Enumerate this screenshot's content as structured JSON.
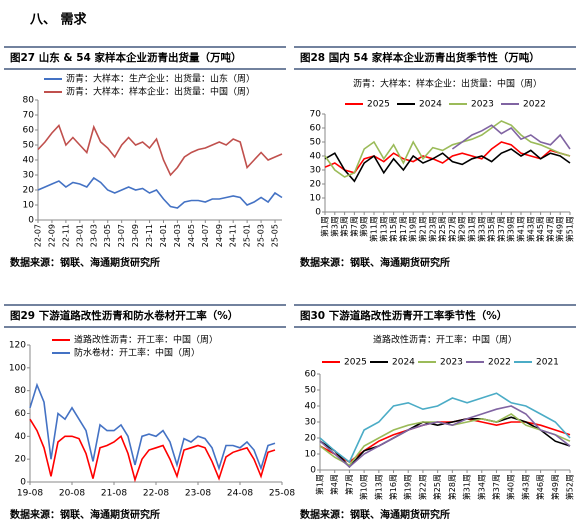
{
  "section_title": "八、 需求",
  "chart_data": [
    {
      "type": "line",
      "title": "图27 山东 & 54 家样本企业沥青出货量（万吨）",
      "source": "数据来源：钢联、海通期货研究所",
      "categories": [
        "22-07",
        null,
        "22-09",
        null,
        "22-11",
        null,
        "23-01",
        null,
        "23-03",
        null,
        "23-05",
        null,
        "23-07",
        null,
        "23-09",
        null,
        "23-11",
        null,
        "24-01",
        null,
        "24-03",
        null,
        "24-05",
        null,
        "24-07",
        null,
        "24-09",
        null,
        "24-11",
        null,
        "25-01",
        null,
        "25-03",
        null,
        "25-05",
        null
      ],
      "series": [
        {
          "name": "沥青：大样本：生产企业：出货量：山东（周）",
          "color": "#4472c4",
          "values": [
            20,
            22,
            24,
            26,
            22,
            25,
            24,
            22,
            28,
            25,
            20,
            18,
            20,
            22,
            20,
            21,
            18,
            20,
            14,
            9,
            8,
            12,
            13,
            13,
            12,
            14,
            14,
            15,
            16,
            15,
            10,
            12,
            15,
            12,
            18,
            15
          ]
        },
        {
          "name": "沥青：大样本：样本企业：出货量：中国（周）",
          "color": "#c0504d",
          "values": [
            47,
            52,
            58,
            63,
            50,
            55,
            50,
            45,
            62,
            52,
            48,
            42,
            50,
            55,
            50,
            52,
            48,
            54,
            40,
            30,
            35,
            42,
            45,
            47,
            48,
            50,
            52,
            50,
            54,
            52,
            35,
            40,
            45,
            40,
            42,
            44
          ]
        }
      ],
      "ylim": [
        0,
        80
      ],
      "yticks": [
        0,
        10,
        20,
        30,
        40,
        50,
        60,
        70,
        80
      ],
      "grid": false
    },
    {
      "type": "line",
      "title": "图28 国内 54 家样本企业沥青出货季节性（万吨）",
      "subtitle": "沥青：大样本：样本企业：出货量：中国（周）",
      "source": "数据来源：钢联、海通期货研究所",
      "categories": [
        "第1周",
        "第3周",
        "第5周",
        "第7周",
        "第9周",
        "第11周",
        "第13周",
        "第15周",
        "第17周",
        "第19周",
        "第21周",
        "第23周",
        "第25周",
        "第27周",
        "第29周",
        "第31周",
        "第33周",
        "第35周",
        "第37周",
        "第39周",
        "第41周",
        "第43周",
        "第45周",
        "第47周",
        "第49周",
        "第51周"
      ],
      "series": [
        {
          "name": "2025",
          "color": "#ff0000",
          "values": [
            32,
            35,
            30,
            28,
            38,
            40,
            36,
            42,
            38,
            36,
            40,
            38,
            35,
            40,
            42,
            40,
            38,
            45,
            50,
            48,
            42,
            40,
            38,
            44,
            42,
            40
          ]
        },
        {
          "name": "2024",
          "color": "#000000",
          "values": [
            38,
            42,
            30,
            22,
            35,
            40,
            28,
            38,
            30,
            40,
            35,
            38,
            42,
            36,
            34,
            38,
            40,
            36,
            42,
            45,
            40,
            44,
            38,
            42,
            40,
            35
          ]
        },
        {
          "name": "2023",
          "color": "#9bbb59",
          "values": [
            40,
            30,
            25,
            28,
            45,
            50,
            38,
            48,
            35,
            50,
            38,
            46,
            44,
            48,
            50,
            52,
            55,
            60,
            65,
            62,
            55,
            50,
            48,
            45,
            42,
            40
          ]
        },
        {
          "name": "2022",
          "color": "#8064a2",
          "values": [
            null,
            null,
            null,
            null,
            null,
            null,
            null,
            null,
            null,
            null,
            null,
            null,
            null,
            45,
            50,
            55,
            58,
            62,
            56,
            60,
            52,
            55,
            50,
            48,
            55,
            45
          ]
        }
      ],
      "ylim": [
        0,
        70
      ],
      "yticks": [
        0,
        10,
        20,
        30,
        40,
        50,
        60,
        70
      ],
      "grid": false
    },
    {
      "type": "line",
      "title": "图29 下游道路改性沥青和防水卷材开工率（%）",
      "source": "数据来源：钢联、海通期货研究所",
      "categories": [
        "19-08",
        null,
        null,
        null,
        null,
        null,
        "20-08",
        null,
        null,
        null,
        null,
        null,
        "21-08",
        null,
        null,
        null,
        null,
        null,
        "22-08",
        null,
        null,
        null,
        null,
        null,
        "23-08",
        null,
        null,
        null,
        null,
        null,
        "24-08",
        null,
        null,
        null,
        null,
        null,
        "25-08"
      ],
      "series": [
        {
          "name": "道路改性沥青：开工率：中国（周）",
          "color": "#ff0000",
          "values": [
            55,
            45,
            30,
            5,
            35,
            40,
            40,
            38,
            25,
            3,
            30,
            32,
            35,
            40,
            25,
            2,
            20,
            28,
            30,
            32,
            20,
            5,
            28,
            30,
            32,
            30,
            18,
            3,
            22,
            26,
            28,
            30,
            20,
            5,
            26,
            28,
            null
          ]
        },
        {
          "name": "防水卷材：开工率：中国（周）",
          "color": "#4472c4",
          "values": [
            65,
            85,
            70,
            20,
            60,
            55,
            65,
            55,
            45,
            18,
            50,
            45,
            45,
            50,
            40,
            15,
            40,
            42,
            40,
            45,
            35,
            15,
            38,
            35,
            40,
            38,
            30,
            12,
            32,
            32,
            30,
            35,
            28,
            12,
            32,
            34,
            null
          ]
        }
      ],
      "ylim": [
        0,
        120
      ],
      "yticks": [
        0,
        20,
        40,
        60,
        80,
        100,
        120
      ],
      "grid": false
    },
    {
      "type": "line",
      "title": "图30 下游道路改性沥青开工率季节性（%）",
      "subtitle": "道路改性沥青：开工率：中国（周）",
      "source": "数据来源：钢联、海通期货研究所",
      "categories": [
        "第1周",
        "第4周",
        "第7周",
        "第10周",
        "第13周",
        "第16周",
        "第19周",
        "第22周",
        "第25周",
        "第28周",
        "第31周",
        "第34周",
        "第37周",
        "第40周",
        "第43周",
        "第46周",
        "第49周",
        "第52周"
      ],
      "series": [
        {
          "name": "2025",
          "color": "#ff0000",
          "values": [
            15,
            10,
            5,
            12,
            18,
            22,
            25,
            28,
            30,
            30,
            32,
            30,
            28,
            30,
            30,
            28,
            25,
            22
          ]
        },
        {
          "name": "2024",
          "color": "#000000",
          "values": [
            18,
            12,
            2,
            12,
            15,
            20,
            25,
            30,
            28,
            30,
            32,
            32,
            30,
            33,
            30,
            25,
            18,
            15
          ]
        },
        {
          "name": "2023",
          "color": "#9bbb59",
          "values": [
            15,
            8,
            3,
            15,
            20,
            25,
            28,
            30,
            30,
            28,
            30,
            32,
            30,
            35,
            28,
            25,
            22,
            18
          ]
        },
        {
          "name": "2022",
          "color": "#8064a2",
          "values": [
            18,
            10,
            2,
            10,
            15,
            20,
            25,
            28,
            30,
            28,
            32,
            35,
            38,
            40,
            35,
            25,
            22,
            15
          ]
        },
        {
          "name": "2021",
          "color": "#4bacc6",
          "values": [
            20,
            12,
            5,
            25,
            30,
            40,
            42,
            38,
            40,
            45,
            42,
            45,
            48,
            42,
            40,
            35,
            30,
            20
          ]
        }
      ],
      "ylim": [
        0,
        60
      ],
      "yticks": [
        0,
        10,
        20,
        30,
        40,
        50,
        60
      ],
      "grid": false
    }
  ]
}
